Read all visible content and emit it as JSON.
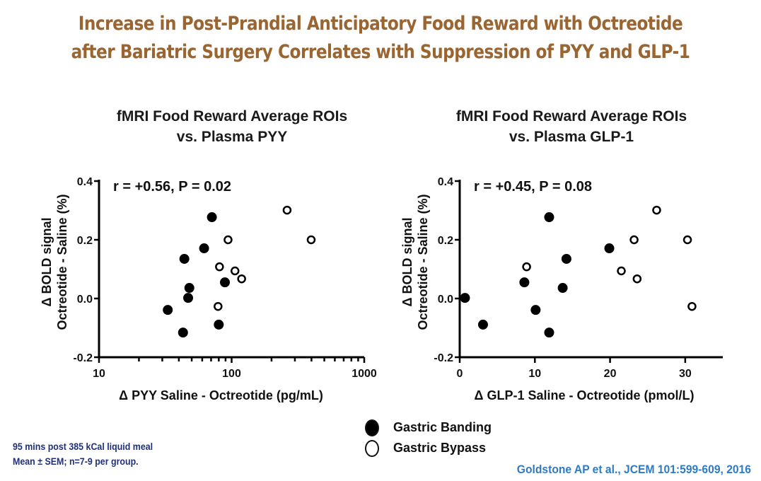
{
  "title": {
    "line1": "Increase in Post-Prandial Anticipatory Food Reward with Octreotide",
    "line2": "after Bariatric Surgery Correlates with Suppression of PYY and GLP-1"
  },
  "legend": {
    "items": [
      {
        "label": "Gastric Banding",
        "marker": "filled-circle"
      },
      {
        "label": "Gastric Bypass",
        "marker": "open-circle"
      }
    ]
  },
  "notes": {
    "line1": "95 mins post 385 kCal liquid meal",
    "line2": "Mean ± SEM; n=7-9 per group."
  },
  "citation": "Goldstone AP et al., JCEM 101:599-609, 2016",
  "colors": {
    "title": "#9a6530",
    "notes": "#1f2f7a",
    "citation": "#2e7bc4",
    "marker": "#000000"
  },
  "chart_data": [
    {
      "type": "scatter",
      "title_line1": "fMRI Food Reward Average ROIs",
      "title_line2": "vs. Plasma PYY",
      "annotation": "r = +0.56, P = 0.02",
      "xlabel": "Δ PYY Saline - Octreotide (pg/mL)",
      "ylabel_line1": "Δ BOLD signal",
      "ylabel_line2": "Octreotide - Saline (%)",
      "xscale": "log",
      "xlim": [
        10,
        1000
      ],
      "ylim": [
        -0.2,
        0.4
      ],
      "xticks": [
        10,
        100,
        1000
      ],
      "xtick_labels": [
        "10",
        "100",
        "1000"
      ],
      "yticks": [
        -0.2,
        0.0,
        0.2,
        0.4
      ],
      "ytick_labels": [
        "-0.2",
        "0.0",
        "0.2",
        "0.4"
      ],
      "grid": false,
      "series": [
        {
          "name": "Gastric Banding",
          "marker": "filled",
          "x": [
            71,
            62,
            44,
            48,
            47,
            33,
            43,
            89,
            80
          ],
          "y": [
            0.277,
            0.171,
            0.135,
            0.036,
            0.002,
            -0.039,
            -0.116,
            0.055,
            -0.089
          ]
        },
        {
          "name": "Gastric Bypass",
          "marker": "open",
          "x": [
            262,
            94,
            398,
            81,
            106,
            119,
            79
          ],
          "y": [
            0.301,
            0.2,
            0.2,
            0.108,
            0.094,
            0.067,
            -0.027
          ]
        }
      ]
    },
    {
      "type": "scatter",
      "title_line1": "fMRI Food Reward Average ROIs",
      "title_line2": "vs. Plasma GLP-1",
      "annotation": "r = +0.45, P = 0.08",
      "xlabel": "Δ GLP-1 Saline - Octreotide (pmol/L)",
      "ylabel_line1": "Δ BOLD signal",
      "ylabel_line2": "Octreotide - Saline (%)",
      "xscale": "linear",
      "xlim": [
        0,
        35
      ],
      "ylim": [
        -0.2,
        0.4
      ],
      "xticks": [
        0,
        10,
        20,
        30
      ],
      "xtick_labels": [
        "0",
        "10",
        "20",
        "30"
      ],
      "yticks": [
        -0.2,
        0.0,
        0.2,
        0.4
      ],
      "ytick_labels": [
        "-0.2",
        "0.0",
        "0.2",
        "0.4"
      ],
      "grid": false,
      "series": [
        {
          "name": "Gastric Banding",
          "marker": "filled",
          "x": [
            0.7,
            3.1,
            8.6,
            10.1,
            11.9,
            11.9,
            13.7,
            14.2,
            19.9
          ],
          "y": [
            0.002,
            -0.089,
            0.055,
            -0.039,
            0.277,
            -0.116,
            0.036,
            0.135,
            0.171
          ]
        },
        {
          "name": "Gastric Bypass",
          "marker": "open",
          "x": [
            26.2,
            23.2,
            30.3,
            8.9,
            21.5,
            23.6,
            30.9
          ],
          "y": [
            0.301,
            0.2,
            0.2,
            0.108,
            0.094,
            0.067,
            -0.027
          ]
        }
      ]
    }
  ]
}
